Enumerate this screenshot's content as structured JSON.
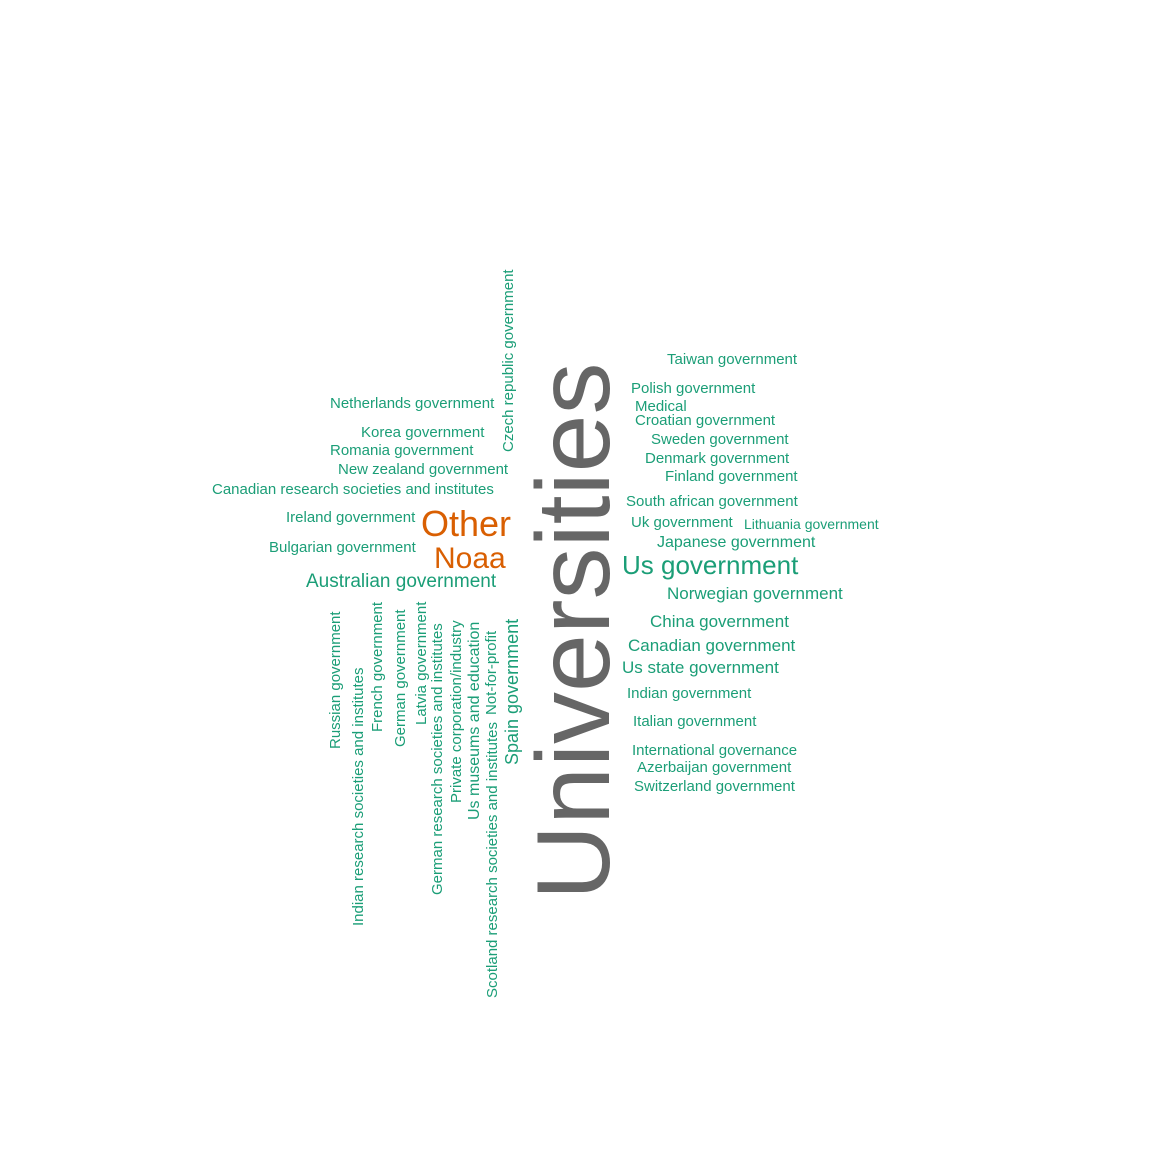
{
  "colors": {
    "green": "#1b9e77",
    "orange": "#d95f02",
    "gray": "#666666",
    "background": "#ffffff"
  },
  "words": {
    "universities": "Universities",
    "other": "Other",
    "noaa": "Noaa",
    "us_government": "Us government",
    "australian_government": "Australian government",
    "spain_government": "Spain government",
    "us_museums": "Us museums and education",
    "japanese_government": "Japanese government",
    "norwegian_government": "Norwegian government",
    "china_government": "China government",
    "canadian_government": "Canadian government",
    "us_state_government": "Us state government",
    "taiwan_government": "Taiwan government",
    "polish_government": "Polish government",
    "medical": "Medical",
    "croatian_government": "Croatian government",
    "sweden_government": "Sweden government",
    "denmark_government": "Denmark government",
    "finland_government": "Finland government",
    "south_african_government": "South african government",
    "uk_government": "Uk government",
    "lithuania_government": "Lithuania government",
    "indian_government": "Indian government",
    "italian_government": "Italian government",
    "international_governance": "International governance",
    "azerbaijan_government": "Azerbaijan government",
    "switzerland_government": "Switzerland government",
    "netherlands_government": "Netherlands government",
    "korea_government": "Korea government",
    "romania_government": "Romania government",
    "new_zealand_government": "New zealand government",
    "canadian_research": "Canadian research societies and institutes",
    "ireland_government": "Ireland government",
    "bulgarian_government": "Bulgarian government",
    "czech_government": "Czech republic government",
    "russian_government": "Russian government",
    "indian_research": "Indian research societies and institutes",
    "french_government": "French government",
    "german_government": "German government",
    "latvia_government": "Latvia government",
    "german_research": "German research societies and institutes",
    "private_corporation": "Private corporation/industry",
    "not_for_profit": "Not-for-profit",
    "scotland_research": "Scotland research societies and institutes"
  }
}
